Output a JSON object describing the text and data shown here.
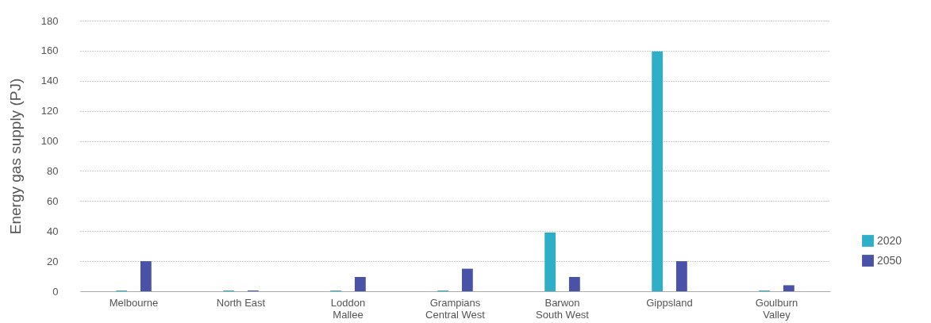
{
  "chart_data": {
    "type": "bar",
    "ylabel": "Energy gas supply (PJ)",
    "categories": [
      "Melbourne",
      "North East",
      "Loddon Mallee",
      "Grampians Central West",
      "Barwon South West",
      "Gippsland",
      "Goulburn Valley"
    ],
    "series": [
      {
        "name": "2020",
        "color": "#2eaec7",
        "values": [
          0.5,
          0.5,
          0.5,
          0.5,
          39,
          159.5,
          0.5
        ]
      },
      {
        "name": "2050",
        "color": "#4a52a8",
        "values": [
          20,
          0.5,
          9.5,
          15,
          9.5,
          20,
          4
        ]
      }
    ],
    "ylim": [
      0,
      180
    ],
    "yticks": [
      0,
      20,
      40,
      60,
      80,
      100,
      120,
      140,
      160,
      180
    ],
    "grid": "y",
    "legend": "bottom right"
  }
}
